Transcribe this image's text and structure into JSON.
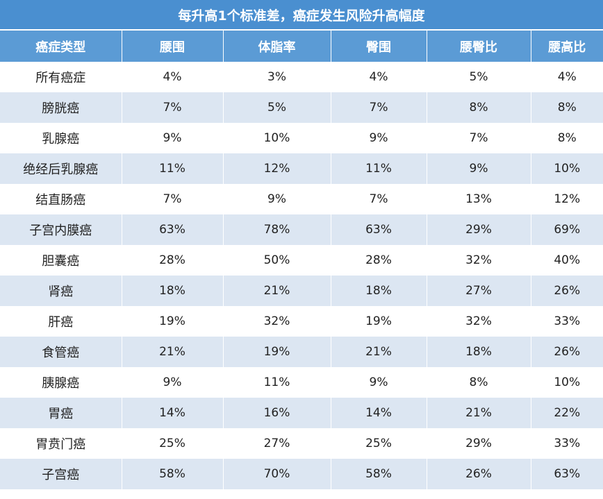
{
  "title": "每升高1个标准差，癌症发生风险升高幅度",
  "headers": [
    "癌症类型",
    "腰围",
    "体脂率",
    "臀围",
    "腰臀比",
    "腰高比"
  ],
  "rows": [
    [
      "所有癌症",
      "4%",
      "3%",
      "4%",
      "5%",
      "4%"
    ],
    [
      "膀胱癌",
      "7%",
      "5%",
      "7%",
      "8%",
      "8%"
    ],
    [
      "乳腺癌",
      "9%",
      "10%",
      "9%",
      "7%",
      "8%"
    ],
    [
      "绝经后乳腺癌",
      "11%",
      "12%",
      "11%",
      "9%",
      "10%"
    ],
    [
      "结直肠癌",
      "7%",
      "9%",
      "7%",
      "13%",
      "12%"
    ],
    [
      "子宫内膜癌",
      "63%",
      "78%",
      "63%",
      "29%",
      "69%"
    ],
    [
      "胆囊癌",
      "28%",
      "50%",
      "28%",
      "32%",
      "40%"
    ],
    [
      "肾癌",
      "18%",
      "21%",
      "18%",
      "27%",
      "26%"
    ],
    [
      "肝癌",
      "19%",
      "32%",
      "19%",
      "32%",
      "33%"
    ],
    [
      "食管癌",
      "21%",
      "19%",
      "21%",
      "18%",
      "26%"
    ],
    [
      "胰腺癌",
      "9%",
      "11%",
      "9%",
      "8%",
      "10%"
    ],
    [
      "胃癌",
      "14%",
      "16%",
      "14%",
      "21%",
      "22%"
    ],
    [
      "胃贲门癌",
      "25%",
      "27%",
      "25%",
      "29%",
      "33%"
    ],
    [
      "子宫癌",
      "58%",
      "70%",
      "58%",
      "26%",
      "63%"
    ]
  ],
  "colors": {
    "title_bg": "#4a8fd0",
    "header_bg": "#5b9bd5",
    "row_alt_bg": "#dce6f2"
  }
}
